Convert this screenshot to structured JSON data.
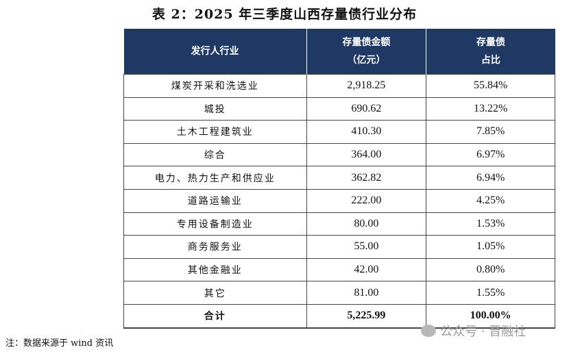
{
  "title": "表 2：2025 年三季度山西存量债行业分布",
  "table": {
    "headers": [
      "发行人行业",
      "存量债金额",
      "（亿元）",
      "存量债",
      "占比"
    ],
    "rows": [
      [
        "煤炭开采和洗选业",
        "2,918.25",
        "55.84%"
      ],
      [
        "城投",
        "690.62",
        "13.22%"
      ],
      [
        "土木工程建筑业",
        "410.30",
        "7.85%"
      ],
      [
        "综合",
        "364.00",
        "6.97%"
      ],
      [
        "电力、热力生产和供应业",
        "362.82",
        "6.94%"
      ],
      [
        "道路运输业",
        "222.00",
        "4.25%"
      ],
      [
        "专用设备制造业",
        "80.00",
        "1.53%"
      ],
      [
        "商务服务业",
        "55.00",
        "1.05%"
      ],
      [
        "其他金融业",
        "42.00",
        "0.80%"
      ],
      [
        "其它",
        "81.00",
        "1.55%"
      ]
    ],
    "total": [
      "合计",
      "5,225.99",
      "100.00%"
    ],
    "header_color": "#1f3864"
  },
  "note": "注：数据来源于 wind 资讯",
  "watermark": "公众号 · 晋融社"
}
